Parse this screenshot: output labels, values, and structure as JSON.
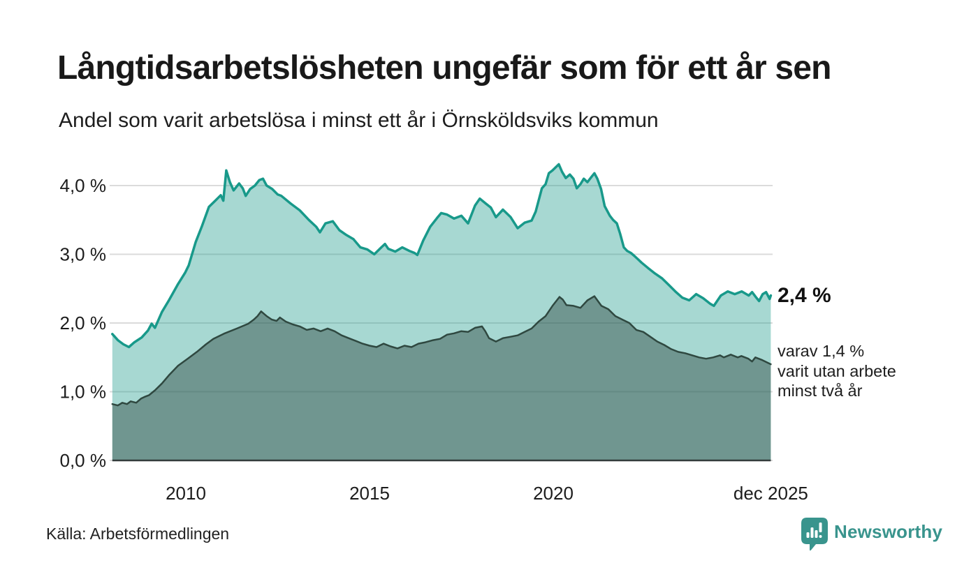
{
  "header": {
    "title": "Långtidsarbetslösheten ungefär som för ett år sen",
    "subtitle": "Andel som varit arbetslösa i minst ett år i Örnsköldsviks kommun"
  },
  "annotations": {
    "latest_total": "2,4 %",
    "secondary_lines": [
      "varav 1,4 %",
      "varit utan arbete",
      "minst två år"
    ]
  },
  "footer": {
    "source": "Källa: Arbetsförmedlingen",
    "logo_text": "Newsworthy"
  },
  "colors": {
    "accent_teal": "#18998a",
    "light_area_fill": "#a5d4cd",
    "dark_line": "#2f4840",
    "dark_area_fill": "#6f9e97",
    "gridline": "#dbdbdb",
    "baseline": "#333c3b",
    "logo_teal": "#39948d",
    "text": "#1c1c1c"
  },
  "chart_data": {
    "type": "area",
    "title": "Långtidsarbetslösheten ungefär som för ett år sen",
    "subtitle": "Andel som varit arbetslösa i minst ett år i Örnsköldsviks kommun",
    "xlabel": "",
    "ylabel": "",
    "x_unit": "decimal year (monthly data)",
    "xlim": [
      2008.0,
      2025.92
    ],
    "ylim": [
      0,
      4.35
    ],
    "grid": "horizontal only",
    "legend": "none (labelled by right-side annotations)",
    "y_ticks": [
      {
        "label": "0,0 %",
        "value": 0
      },
      {
        "label": "1,0 %",
        "value": 1
      },
      {
        "label": "2,0 %",
        "value": 2
      },
      {
        "label": "3,0 %",
        "value": 3
      },
      {
        "label": "4,0 %",
        "value": 4
      }
    ],
    "x_ticks": [
      {
        "label": "2010",
        "year": 2010
      },
      {
        "label": "2015",
        "year": 2015
      },
      {
        "label": "2020",
        "year": 2020
      },
      {
        "label": "dec 2025",
        "year": 2025.92
      }
    ],
    "series": [
      {
        "name": "Andel arbetslösa minst ett år",
        "latest_value_label": "2,4 %",
        "line_color": "#18998a",
        "fill_color": "rgba(24,153,138,0.38)",
        "points": [
          [
            2008.0,
            1.84
          ],
          [
            2008.15,
            1.75
          ],
          [
            2008.3,
            1.69
          ],
          [
            2008.45,
            1.65
          ],
          [
            2008.6,
            1.72
          ],
          [
            2008.8,
            1.79
          ],
          [
            2008.97,
            1.89
          ],
          [
            2009.07,
            1.99
          ],
          [
            2009.16,
            1.93
          ],
          [
            2009.35,
            2.16
          ],
          [
            2009.54,
            2.33
          ],
          [
            2009.79,
            2.57
          ],
          [
            2009.98,
            2.73
          ],
          [
            2010.08,
            2.84
          ],
          [
            2010.27,
            3.18
          ],
          [
            2010.44,
            3.41
          ],
          [
            2010.63,
            3.69
          ],
          [
            2010.82,
            3.79
          ],
          [
            2010.95,
            3.86
          ],
          [
            2011.02,
            3.78
          ],
          [
            2011.1,
            4.22
          ],
          [
            2011.2,
            4.05
          ],
          [
            2011.3,
            3.93
          ],
          [
            2011.45,
            4.03
          ],
          [
            2011.55,
            3.96
          ],
          [
            2011.63,
            3.85
          ],
          [
            2011.75,
            3.95
          ],
          [
            2011.88,
            4.0
          ],
          [
            2012.0,
            4.08
          ],
          [
            2012.1,
            4.1
          ],
          [
            2012.2,
            4.0
          ],
          [
            2012.35,
            3.95
          ],
          [
            2012.5,
            3.87
          ],
          [
            2012.6,
            3.85
          ],
          [
            2012.85,
            3.74
          ],
          [
            2013.1,
            3.64
          ],
          [
            2013.35,
            3.5
          ],
          [
            2013.55,
            3.4
          ],
          [
            2013.65,
            3.32
          ],
          [
            2013.8,
            3.45
          ],
          [
            2014.0,
            3.48
          ],
          [
            2014.18,
            3.35
          ],
          [
            2014.37,
            3.28
          ],
          [
            2014.56,
            3.22
          ],
          [
            2014.75,
            3.1
          ],
          [
            2014.94,
            3.07
          ],
          [
            2015.13,
            3.0
          ],
          [
            2015.32,
            3.1
          ],
          [
            2015.42,
            3.15
          ],
          [
            2015.51,
            3.08
          ],
          [
            2015.7,
            3.04
          ],
          [
            2015.89,
            3.1
          ],
          [
            2016.08,
            3.05
          ],
          [
            2016.22,
            3.02
          ],
          [
            2016.3,
            2.99
          ],
          [
            2016.46,
            3.2
          ],
          [
            2016.65,
            3.4
          ],
          [
            2016.84,
            3.53
          ],
          [
            2016.95,
            3.6
          ],
          [
            2017.1,
            3.58
          ],
          [
            2017.3,
            3.52
          ],
          [
            2017.5,
            3.56
          ],
          [
            2017.68,
            3.45
          ],
          [
            2017.87,
            3.71
          ],
          [
            2018.0,
            3.81
          ],
          [
            2018.16,
            3.74
          ],
          [
            2018.3,
            3.68
          ],
          [
            2018.44,
            3.54
          ],
          [
            2018.63,
            3.65
          ],
          [
            2018.84,
            3.54
          ],
          [
            2019.03,
            3.38
          ],
          [
            2019.22,
            3.46
          ],
          [
            2019.41,
            3.49
          ],
          [
            2019.52,
            3.62
          ],
          [
            2019.69,
            3.96
          ],
          [
            2019.79,
            4.02
          ],
          [
            2019.88,
            4.18
          ],
          [
            2019.98,
            4.22
          ],
          [
            2020.15,
            4.31
          ],
          [
            2020.24,
            4.2
          ],
          [
            2020.34,
            4.11
          ],
          [
            2020.45,
            4.16
          ],
          [
            2020.55,
            4.1
          ],
          [
            2020.64,
            3.96
          ],
          [
            2020.74,
            4.02
          ],
          [
            2020.83,
            4.1
          ],
          [
            2020.93,
            4.05
          ],
          [
            2021.03,
            4.12
          ],
          [
            2021.12,
            4.18
          ],
          [
            2021.2,
            4.1
          ],
          [
            2021.3,
            3.95
          ],
          [
            2021.4,
            3.7
          ],
          [
            2021.54,
            3.56
          ],
          [
            2021.63,
            3.5
          ],
          [
            2021.73,
            3.45
          ],
          [
            2021.82,
            3.3
          ],
          [
            2021.92,
            3.1
          ],
          [
            2022.01,
            3.05
          ],
          [
            2022.11,
            3.02
          ],
          [
            2022.2,
            2.98
          ],
          [
            2022.3,
            2.93
          ],
          [
            2022.4,
            2.88
          ],
          [
            2022.49,
            2.84
          ],
          [
            2022.58,
            2.8
          ],
          [
            2022.77,
            2.72
          ],
          [
            2022.96,
            2.65
          ],
          [
            2023.15,
            2.55
          ],
          [
            2023.34,
            2.45
          ],
          [
            2023.51,
            2.37
          ],
          [
            2023.7,
            2.33
          ],
          [
            2023.89,
            2.42
          ],
          [
            2024.08,
            2.36
          ],
          [
            2024.27,
            2.28
          ],
          [
            2024.37,
            2.25
          ],
          [
            2024.56,
            2.4
          ],
          [
            2024.75,
            2.46
          ],
          [
            2024.94,
            2.42
          ],
          [
            2025.13,
            2.46
          ],
          [
            2025.32,
            2.4
          ],
          [
            2025.41,
            2.45
          ],
          [
            2025.51,
            2.38
          ],
          [
            2025.6,
            2.32
          ],
          [
            2025.7,
            2.42
          ],
          [
            2025.79,
            2.45
          ],
          [
            2025.89,
            2.35
          ],
          [
            2025.92,
            2.4
          ]
        ]
      },
      {
        "name": "varav arbetslösa minst två år",
        "latest_value_label": "1,4 %",
        "line_color": "#2f4840",
        "fill_color": "rgba(47,72,64,0.45)",
        "points": [
          [
            2008.0,
            0.82
          ],
          [
            2008.15,
            0.8
          ],
          [
            2008.27,
            0.84
          ],
          [
            2008.4,
            0.82
          ],
          [
            2008.5,
            0.86
          ],
          [
            2008.65,
            0.84
          ],
          [
            2008.78,
            0.9
          ],
          [
            2008.9,
            0.93
          ],
          [
            2009.0,
            0.95
          ],
          [
            2009.16,
            1.02
          ],
          [
            2009.35,
            1.12
          ],
          [
            2009.54,
            1.24
          ],
          [
            2009.79,
            1.38
          ],
          [
            2010.05,
            1.48
          ],
          [
            2010.3,
            1.58
          ],
          [
            2010.55,
            1.69
          ],
          [
            2010.75,
            1.77
          ],
          [
            2011.06,
            1.85
          ],
          [
            2011.39,
            1.92
          ],
          [
            2011.7,
            1.99
          ],
          [
            2011.85,
            2.05
          ],
          [
            2011.95,
            2.1
          ],
          [
            2012.05,
            2.17
          ],
          [
            2012.2,
            2.1
          ],
          [
            2012.34,
            2.05
          ],
          [
            2012.47,
            2.03
          ],
          [
            2012.56,
            2.08
          ],
          [
            2012.72,
            2.02
          ],
          [
            2012.91,
            1.98
          ],
          [
            2013.1,
            1.95
          ],
          [
            2013.29,
            1.9
          ],
          [
            2013.48,
            1.92
          ],
          [
            2013.67,
            1.88
          ],
          [
            2013.86,
            1.92
          ],
          [
            2014.05,
            1.88
          ],
          [
            2014.24,
            1.82
          ],
          [
            2014.43,
            1.78
          ],
          [
            2014.62,
            1.74
          ],
          [
            2014.81,
            1.7
          ],
          [
            2015.0,
            1.67
          ],
          [
            2015.19,
            1.65
          ],
          [
            2015.38,
            1.7
          ],
          [
            2015.57,
            1.66
          ],
          [
            2015.76,
            1.63
          ],
          [
            2015.95,
            1.67
          ],
          [
            2016.14,
            1.65
          ],
          [
            2016.33,
            1.7
          ],
          [
            2016.52,
            1.72
          ],
          [
            2016.73,
            1.75
          ],
          [
            2016.92,
            1.77
          ],
          [
            2017.11,
            1.83
          ],
          [
            2017.3,
            1.85
          ],
          [
            2017.49,
            1.88
          ],
          [
            2017.68,
            1.87
          ],
          [
            2017.87,
            1.93
          ],
          [
            2018.06,
            1.95
          ],
          [
            2018.15,
            1.88
          ],
          [
            2018.25,
            1.78
          ],
          [
            2018.44,
            1.73
          ],
          [
            2018.63,
            1.78
          ],
          [
            2018.84,
            1.8
          ],
          [
            2019.03,
            1.82
          ],
          [
            2019.22,
            1.87
          ],
          [
            2019.41,
            1.92
          ],
          [
            2019.6,
            2.02
          ],
          [
            2019.79,
            2.1
          ],
          [
            2019.98,
            2.25
          ],
          [
            2020.17,
            2.38
          ],
          [
            2020.26,
            2.34
          ],
          [
            2020.36,
            2.26
          ],
          [
            2020.55,
            2.25
          ],
          [
            2020.74,
            2.22
          ],
          [
            2020.93,
            2.33
          ],
          [
            2021.12,
            2.39
          ],
          [
            2021.31,
            2.25
          ],
          [
            2021.5,
            2.2
          ],
          [
            2021.69,
            2.1
          ],
          [
            2021.88,
            2.05
          ],
          [
            2022.07,
            2.0
          ],
          [
            2022.26,
            1.9
          ],
          [
            2022.45,
            1.87
          ],
          [
            2022.64,
            1.8
          ],
          [
            2022.83,
            1.73
          ],
          [
            2023.02,
            1.68
          ],
          [
            2023.21,
            1.62
          ],
          [
            2023.4,
            1.58
          ],
          [
            2023.59,
            1.56
          ],
          [
            2023.78,
            1.53
          ],
          [
            2023.97,
            1.5
          ],
          [
            2024.16,
            1.48
          ],
          [
            2024.35,
            1.5
          ],
          [
            2024.54,
            1.53
          ],
          [
            2024.64,
            1.5
          ],
          [
            2024.83,
            1.54
          ],
          [
            2025.02,
            1.5
          ],
          [
            2025.12,
            1.52
          ],
          [
            2025.31,
            1.48
          ],
          [
            2025.41,
            1.44
          ],
          [
            2025.5,
            1.5
          ],
          [
            2025.69,
            1.46
          ],
          [
            2025.88,
            1.41
          ],
          [
            2025.92,
            1.4
          ]
        ]
      }
    ]
  }
}
